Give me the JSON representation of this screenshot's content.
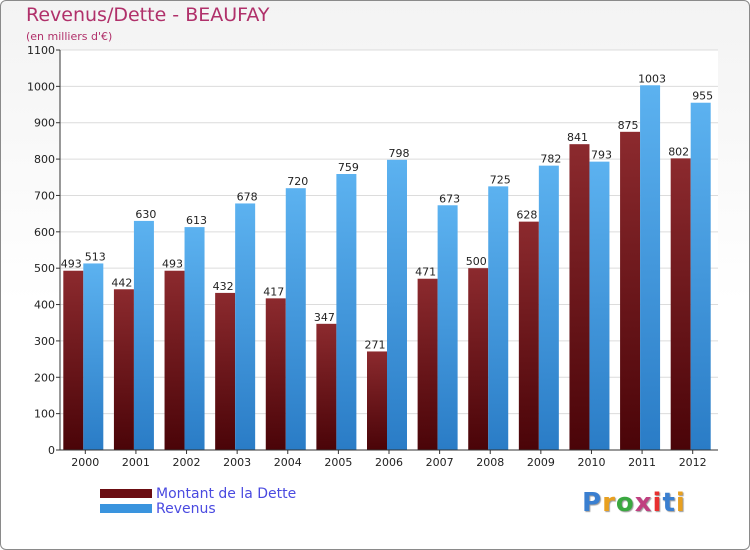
{
  "title": "Revenus/Dette - BEAUFAY",
  "subtitle": "(en milliers d'€)",
  "logo": {
    "text": "Proxiti",
    "colors": [
      "#3a7fd0",
      "#e8a020",
      "#3aa840",
      "#c04080",
      "#e83030",
      "#3a7fd0",
      "#e8a020"
    ]
  },
  "legend": {
    "placement": "bottom-left",
    "items": [
      {
        "label": "Montant de la Dette",
        "color": "#6b0d12"
      },
      {
        "label": "Revenus",
        "color": "#3a94de"
      }
    ]
  },
  "chart_data": {
    "type": "bar",
    "categories": [
      "2000",
      "2001",
      "2002",
      "2003",
      "2004",
      "2005",
      "2006",
      "2007",
      "2008",
      "2009",
      "2010",
      "2011",
      "2012"
    ],
    "series": [
      {
        "name": "Montant de la Dette",
        "values": [
          493,
          442,
          493,
          432,
          417,
          347,
          271,
          471,
          500,
          628,
          841,
          875,
          802
        ],
        "color": "#6b0d12"
      },
      {
        "name": "Revenus",
        "values": [
          513,
          630,
          613,
          678,
          720,
          759,
          798,
          673,
          725,
          782,
          793,
          1003,
          955
        ],
        "color": "#3a94de"
      }
    ],
    "yticks": [
      "0",
      "100",
      "200",
      "300",
      "400",
      "500",
      "600",
      "700",
      "800",
      "900",
      "1000",
      "1100"
    ],
    "ylim": [
      0,
      1100
    ],
    "grid": true,
    "legend_placement": "bottom-left"
  }
}
